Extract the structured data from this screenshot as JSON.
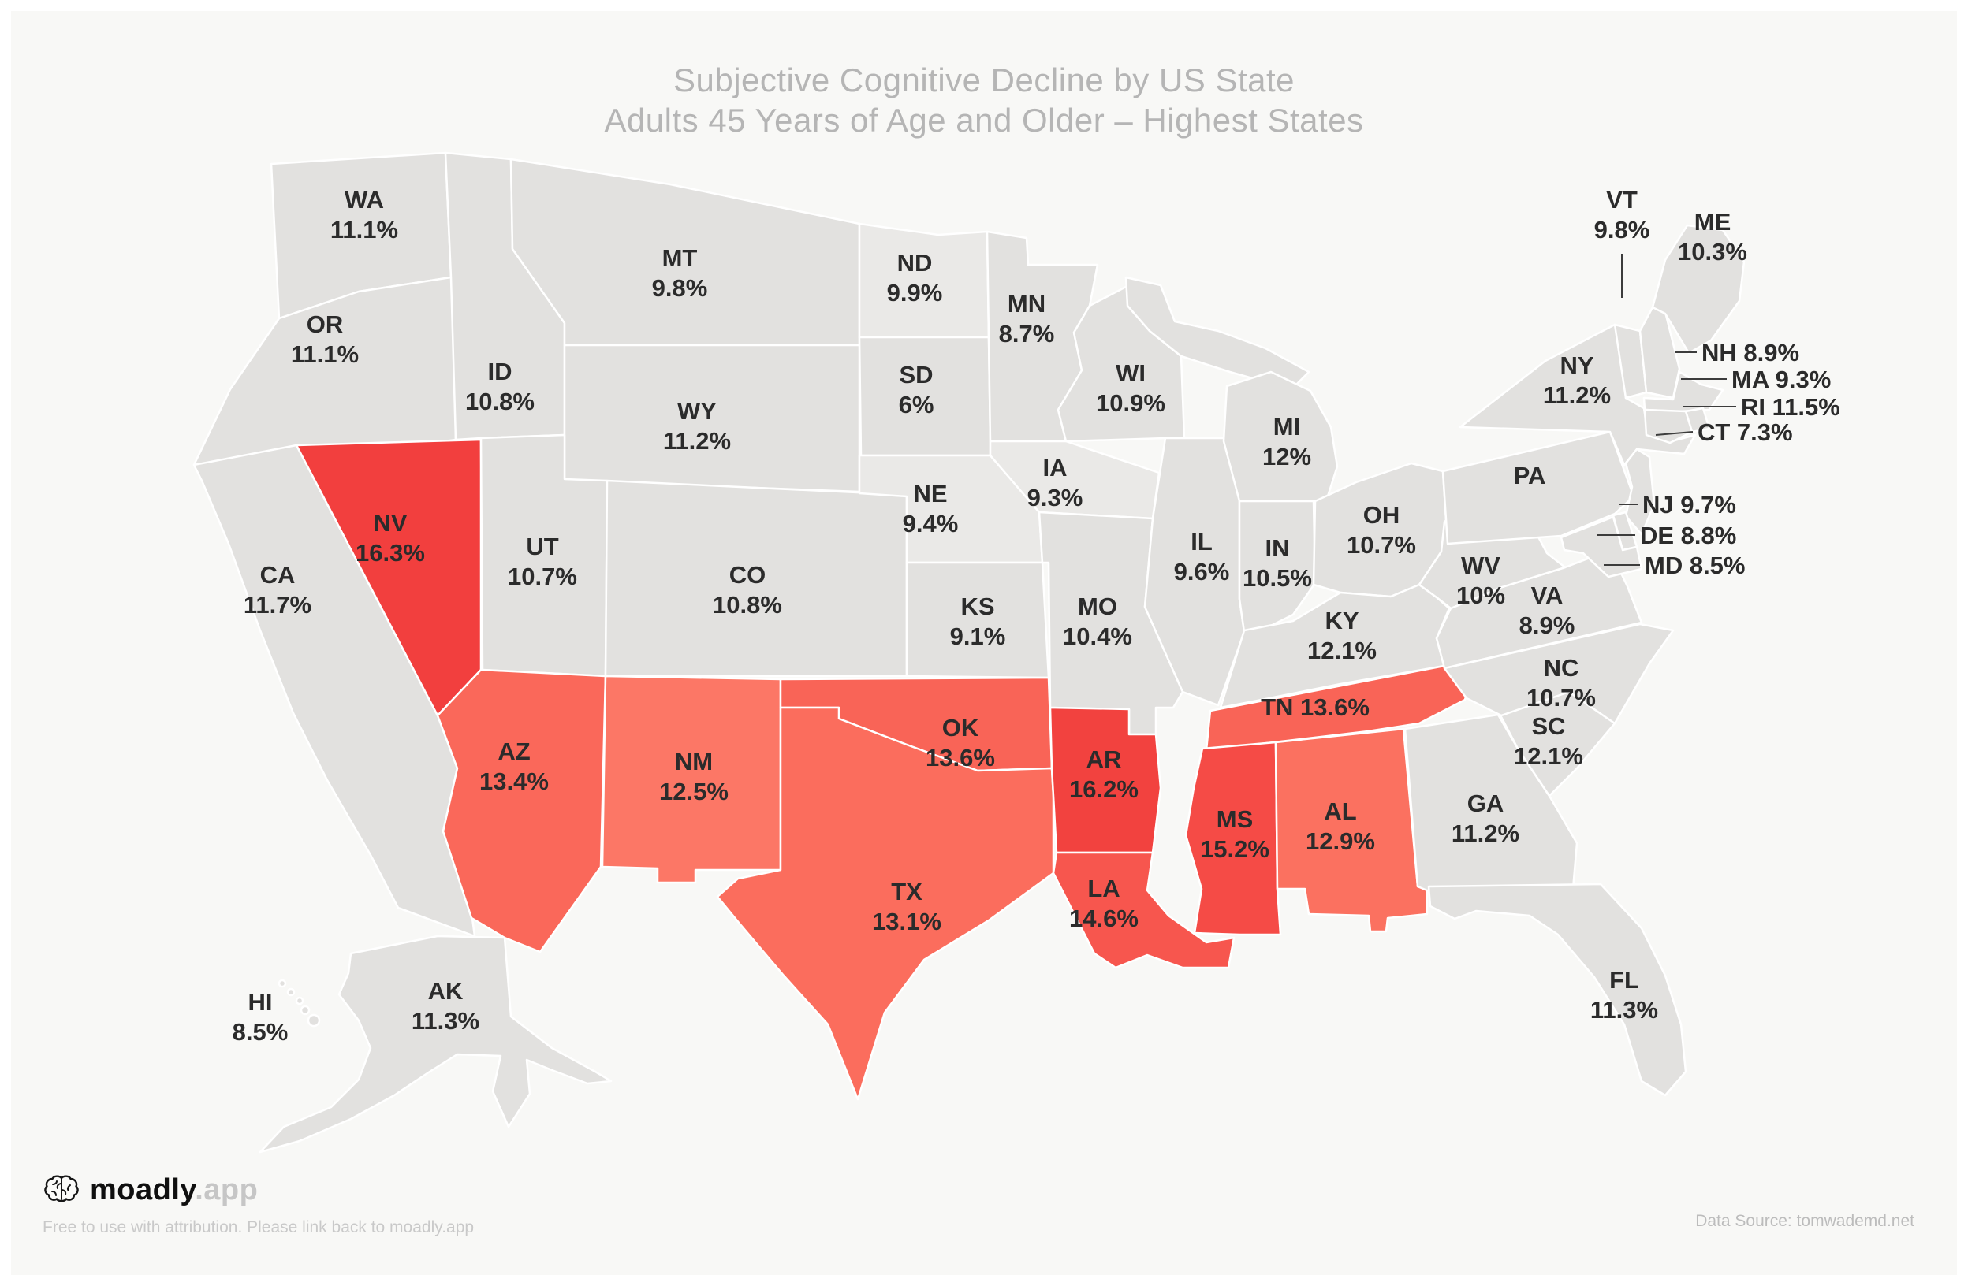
{
  "chart_data": {
    "type": "choropleth",
    "title": "Subjective Cognitive Decline by US State",
    "subtitle": "Adults 45 Years of Age and Older – Highest States",
    "unit": "%",
    "region": "United States",
    "legend": "Highest states shaded red, remaining states gray",
    "colors": {
      "background": "#f8f8f6",
      "state_default": "#e2e1df",
      "state_light": "#eae9e7",
      "state_border": "#ffffff",
      "label_text": "#2b2b2b",
      "highlight_max": "#f23f3e",
      "highlight_min": "#fc7766"
    },
    "states": [
      {
        "abbr": "WA",
        "name": "Washington",
        "value": 11.1,
        "label": "11.1%",
        "fill": "#e2e1df"
      },
      {
        "abbr": "OR",
        "name": "Oregon",
        "value": 11.1,
        "label": "11.1%",
        "fill": "#e2e1df"
      },
      {
        "abbr": "CA",
        "name": "California",
        "value": 11.7,
        "label": "11.7%",
        "fill": "#e2e1df"
      },
      {
        "abbr": "NV",
        "name": "Nevada",
        "value": 16.3,
        "label": "16.3%",
        "fill": "#f23f3e"
      },
      {
        "abbr": "ID",
        "name": "Idaho",
        "value": 10.8,
        "label": "10.8%",
        "fill": "#e2e1df"
      },
      {
        "abbr": "MT",
        "name": "Montana",
        "value": 9.8,
        "label": "9.8%",
        "fill": "#e2e1df"
      },
      {
        "abbr": "WY",
        "name": "Wyoming",
        "value": 11.2,
        "label": "11.2%",
        "fill": "#e2e1df"
      },
      {
        "abbr": "UT",
        "name": "Utah",
        "value": 10.7,
        "label": "10.7%",
        "fill": "#e2e1df"
      },
      {
        "abbr": "CO",
        "name": "Colorado",
        "value": 10.8,
        "label": "10.8%",
        "fill": "#e2e1df"
      },
      {
        "abbr": "AZ",
        "name": "Arizona",
        "value": 13.4,
        "label": "13.4%",
        "fill": "#fa685a"
      },
      {
        "abbr": "NM",
        "name": "New Mexico",
        "value": 12.5,
        "label": "12.5%",
        "fill": "#fc7766"
      },
      {
        "abbr": "ND",
        "name": "North Dakota",
        "value": 9.9,
        "label": "9.9%",
        "fill": "#eae9e7"
      },
      {
        "abbr": "SD",
        "name": "South Dakota",
        "value": 6,
        "label": "6%",
        "fill": "#e2e1df"
      },
      {
        "abbr": "NE",
        "name": "Nebraska",
        "value": 9.4,
        "label": "9.4%",
        "fill": "#eae9e7"
      },
      {
        "abbr": "KS",
        "name": "Kansas",
        "value": 9.1,
        "label": "9.1%",
        "fill": "#e2e1df"
      },
      {
        "abbr": "OK",
        "name": "Oklahoma",
        "value": 13.6,
        "label": "13.6%",
        "fill": "#f96457"
      },
      {
        "abbr": "TX",
        "name": "Texas",
        "value": 13.1,
        "label": "13.1%",
        "fill": "#fb6d5d"
      },
      {
        "abbr": "MN",
        "name": "Minnesota",
        "value": 8.7,
        "label": "8.7%",
        "fill": "#e2e1df"
      },
      {
        "abbr": "IA",
        "name": "Iowa",
        "value": 9.3,
        "label": "9.3%",
        "fill": "#eae9e7"
      },
      {
        "abbr": "MO",
        "name": "Missouri",
        "value": 10.4,
        "label": "10.4%",
        "fill": "#e2e1df"
      },
      {
        "abbr": "AR",
        "name": "Arkansas",
        "value": 16.2,
        "label": "16.2%",
        "fill": "#f2423f"
      },
      {
        "abbr": "LA",
        "name": "Louisiana",
        "value": 14.6,
        "label": "14.6%",
        "fill": "#f7564e"
      },
      {
        "abbr": "WI",
        "name": "Wisconsin",
        "value": 10.9,
        "label": "10.9%",
        "fill": "#e2e1df"
      },
      {
        "abbr": "IL",
        "name": "Illinois",
        "value": 9.6,
        "label": "9.6%",
        "fill": "#e2e1df"
      },
      {
        "abbr": "MI",
        "name": "Michigan",
        "value": 12,
        "label": "12%",
        "fill": "#e2e1df"
      },
      {
        "abbr": "IN",
        "name": "Indiana",
        "value": 10.5,
        "label": "10.5%",
        "fill": "#e2e1df"
      },
      {
        "abbr": "OH",
        "name": "Ohio",
        "value": 10.7,
        "label": "10.7%",
        "fill": "#e2e1df"
      },
      {
        "abbr": "KY",
        "name": "Kentucky",
        "value": 12.1,
        "label": "12.1%",
        "fill": "#e2e1df"
      },
      {
        "abbr": "TN",
        "name": "Tennessee",
        "value": 13.6,
        "label": "13.6%",
        "fill": "#f96457"
      },
      {
        "abbr": "MS",
        "name": "Mississippi",
        "value": 15.2,
        "label": "15.2%",
        "fill": "#f54b46"
      },
      {
        "abbr": "AL",
        "name": "Alabama",
        "value": 12.9,
        "label": "12.9%",
        "fill": "#fb7160"
      },
      {
        "abbr": "GA",
        "name": "Georgia",
        "value": 11.2,
        "label": "11.2%",
        "fill": "#e2e1df"
      },
      {
        "abbr": "SC",
        "name": "South Carolina",
        "value": 12.1,
        "label": "12.1%",
        "fill": "#e2e1df"
      },
      {
        "abbr": "NC",
        "name": "North Carolina",
        "value": 10.7,
        "label": "10.7%",
        "fill": "#e2e1df"
      },
      {
        "abbr": "VA",
        "name": "Virginia",
        "value": 8.9,
        "label": "8.9%",
        "fill": "#e2e1df"
      },
      {
        "abbr": "WV",
        "name": "West Virginia",
        "value": 10,
        "label": "10%",
        "fill": "#e2e1df"
      },
      {
        "abbr": "PA",
        "name": "Pennsylvania",
        "value": null,
        "label": "",
        "fill": "#e2e1df"
      },
      {
        "abbr": "NY",
        "name": "New York",
        "value": 11.2,
        "label": "11.2%",
        "fill": "#e2e1df"
      },
      {
        "abbr": "VT",
        "name": "Vermont",
        "value": 9.8,
        "label": "9.8%",
        "fill": "#e2e1df"
      },
      {
        "abbr": "NH",
        "name": "New Hampshire",
        "value": 8.9,
        "label": "8.9%",
        "fill": "#e2e1df"
      },
      {
        "abbr": "ME",
        "name": "Maine",
        "value": 10.3,
        "label": "10.3%",
        "fill": "#e2e1df"
      },
      {
        "abbr": "MA",
        "name": "Massachusetts",
        "value": 9.3,
        "label": "9.3%",
        "fill": "#e2e1df"
      },
      {
        "abbr": "RI",
        "name": "Rhode Island",
        "value": 11.5,
        "label": "11.5%",
        "fill": "#e2e1df"
      },
      {
        "abbr": "CT",
        "name": "Connecticut",
        "value": 7.3,
        "label": "7.3%",
        "fill": "#e2e1df"
      },
      {
        "abbr": "NJ",
        "name": "New Jersey",
        "value": 9.7,
        "label": "9.7%",
        "fill": "#e2e1df"
      },
      {
        "abbr": "DE",
        "name": "Delaware",
        "value": 8.8,
        "label": "8.8%",
        "fill": "#e2e1df"
      },
      {
        "abbr": "MD",
        "name": "Maryland",
        "value": 8.5,
        "label": "8.5%",
        "fill": "#e2e1df"
      },
      {
        "abbr": "FL",
        "name": "Florida",
        "value": 11.3,
        "label": "11.3%",
        "fill": "#e2e1df"
      },
      {
        "abbr": "AK",
        "name": "Alaska",
        "value": 11.3,
        "label": "11.3%",
        "fill": "#e2e1df"
      },
      {
        "abbr": "HI",
        "name": "Hawaii",
        "value": 8.5,
        "label": "8.5%",
        "fill": "#e2e1df"
      }
    ]
  },
  "footer": {
    "brand_name": "moadly",
    "brand_suffix": ".app",
    "brand_icon": "brain-icon",
    "attribution": "Free to use with attribution. Please link back to moadly.app",
    "data_source": "Data Source: tomwademd.net"
  }
}
